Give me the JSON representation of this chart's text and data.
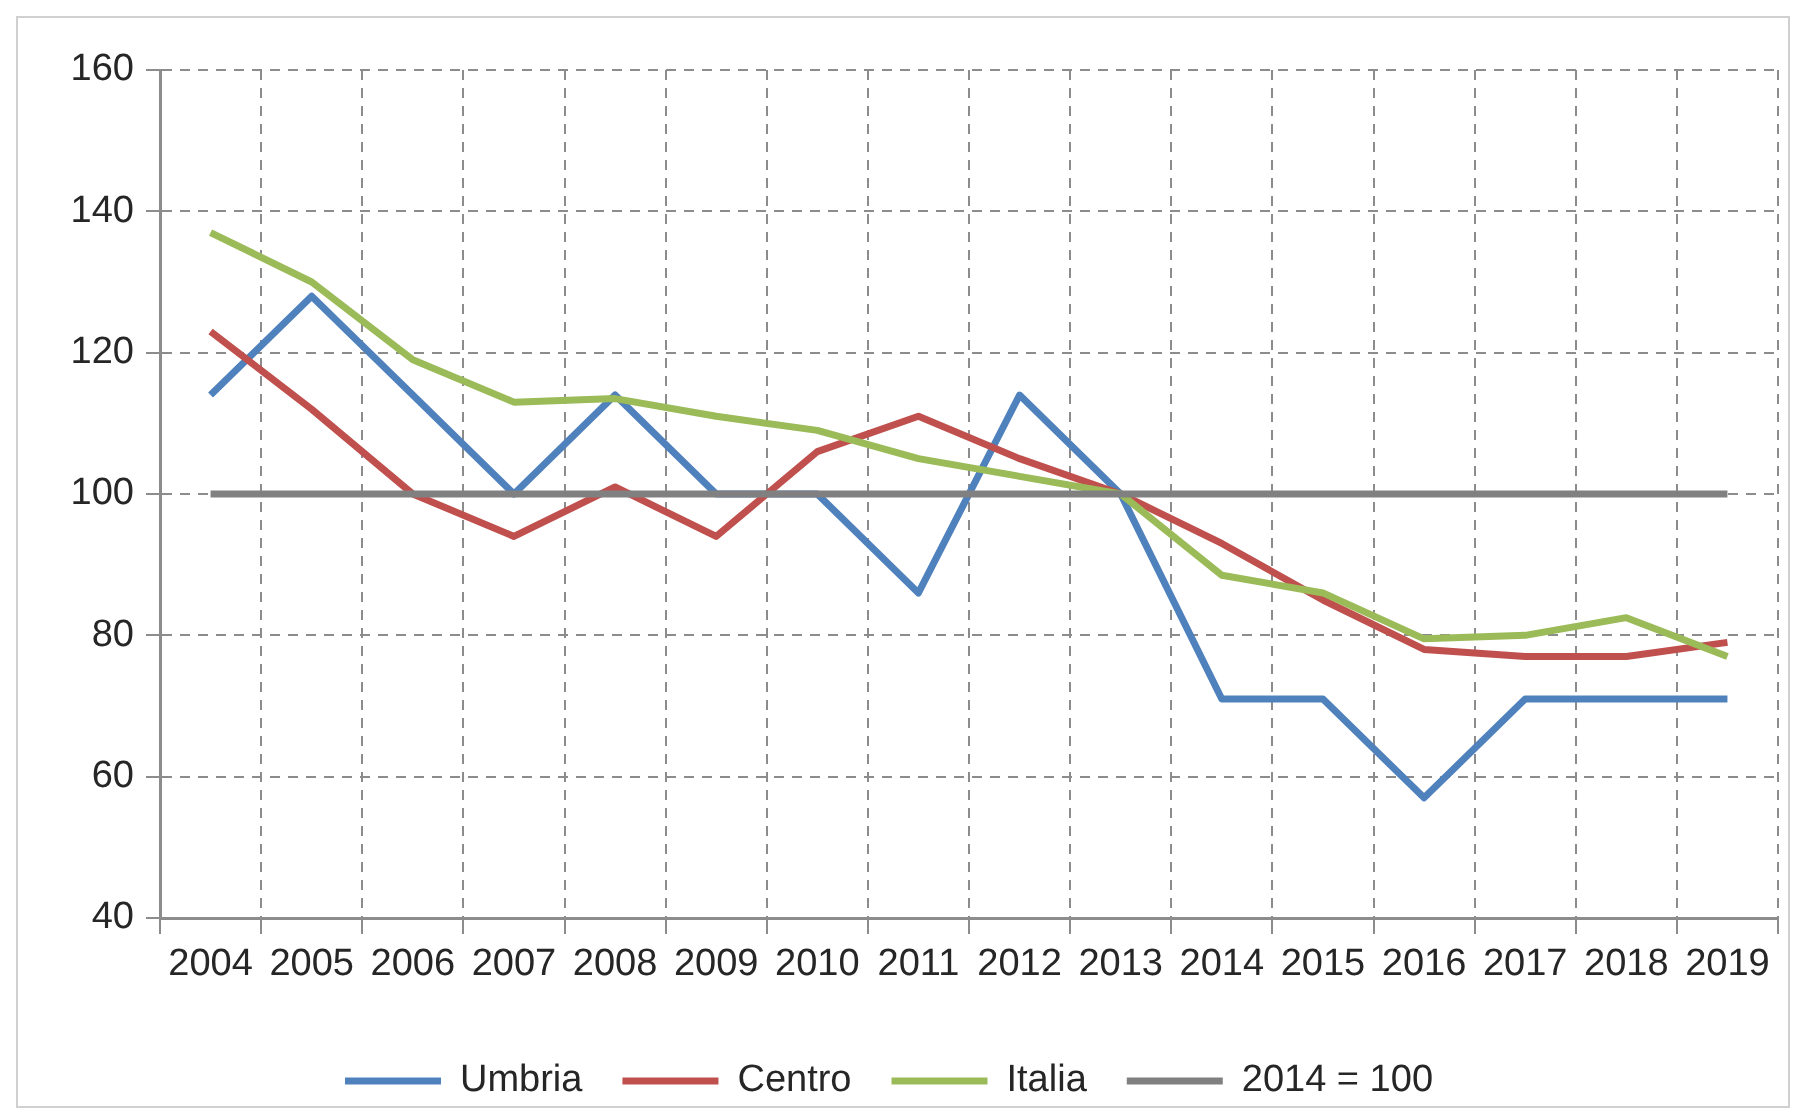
{
  "chart_data": {
    "type": "line",
    "categories": [
      "2004",
      "2005",
      "2006",
      "2007",
      "2008",
      "2009",
      "2010",
      "2011",
      "2012",
      "2013",
      "2014",
      "2015",
      "2016",
      "2017",
      "2018",
      "2019"
    ],
    "series": [
      {
        "name": "Umbria",
        "color": "#4f81bd",
        "values": [
          114,
          128,
          114,
          100,
          114,
          100,
          100,
          86,
          114,
          100,
          71,
          71,
          57,
          71,
          71,
          71
        ]
      },
      {
        "name": "Centro",
        "color": "#c0504d",
        "values": [
          123,
          112,
          100,
          94,
          101,
          94,
          106,
          111,
          105,
          100,
          93,
          85,
          78,
          77,
          77,
          79
        ]
      },
      {
        "name": "Italia",
        "color": "#9bbb59",
        "values": [
          137,
          130,
          119,
          113,
          113.5,
          111,
          109,
          105,
          102.5,
          100,
          88.5,
          86,
          79.5,
          80,
          82.5,
          77
        ]
      },
      {
        "name": "2014 = 100",
        "color": "#808080",
        "values": [
          100,
          100,
          100,
          100,
          100,
          100,
          100,
          100,
          100,
          100,
          100,
          100,
          100,
          100,
          100,
          100
        ]
      }
    ],
    "ylim": [
      40,
      160
    ],
    "yticks": [
      40,
      60,
      80,
      100,
      120,
      140,
      160
    ],
    "grid": true,
    "legend": "bottom",
    "marker": "none",
    "line_style": "solid"
  }
}
